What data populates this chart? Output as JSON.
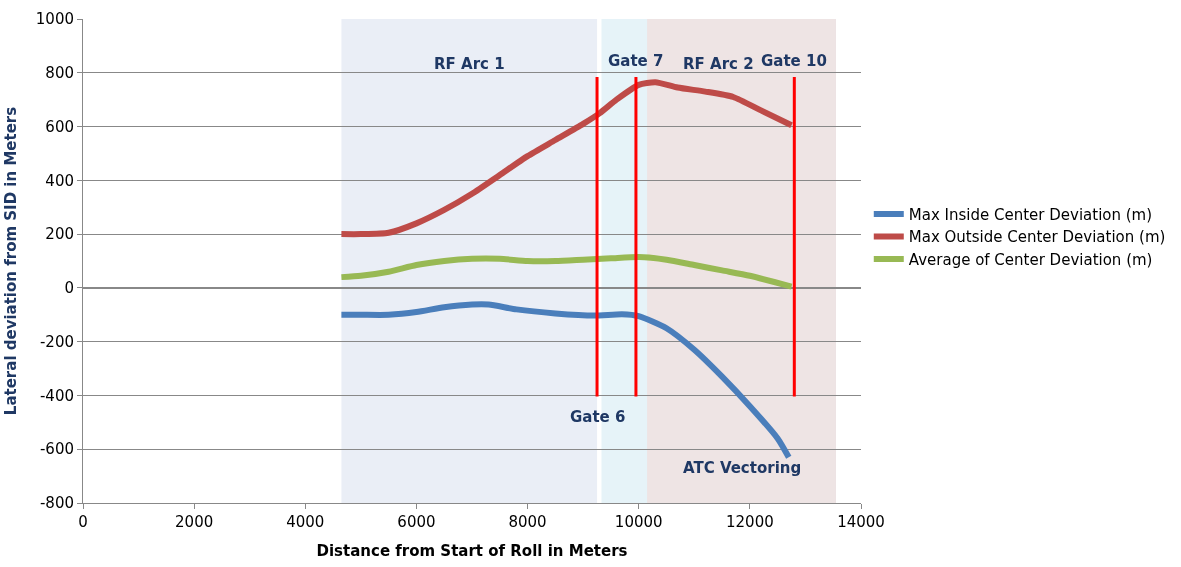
{
  "chart_data": {
    "type": "line",
    "xlabel": "Distance from Start of Roll in Meters",
    "ylabel": "Lateral deviation from SID in Meters",
    "xlim": [
      0,
      14000
    ],
    "xticks": [
      0,
      2000,
      4000,
      6000,
      8000,
      10000,
      12000,
      14000
    ],
    "ylim": [
      -800,
      1000
    ],
    "yticks": [
      -800,
      -600,
      -400,
      -200,
      0,
      200,
      400,
      600,
      800,
      1000
    ],
    "grid": "y",
    "legend": "right",
    "line_style": "solid",
    "marker": "none",
    "series": [
      {
        "name": "Max Inside Center Deviation (m)",
        "color": "#4a7ebb",
        "x": [
          4650,
          5000,
          5500,
          6000,
          6500,
          7000,
          7300,
          7800,
          8500,
          9200,
          9700,
          10000,
          10500,
          11000,
          11500,
          12000,
          12500,
          12700
        ],
        "values": [
          -100,
          -100,
          -100,
          -90,
          -72,
          -62,
          -62,
          -80,
          -95,
          -103,
          -98,
          -105,
          -150,
          -230,
          -330,
          -440,
          -560,
          -630
        ]
      },
      {
        "name": "Max Outside Center Deviation (m)",
        "color": "#be4b48",
        "x": [
          4650,
          5000,
          5500,
          6000,
          6500,
          7000,
          7500,
          8000,
          8500,
          9000,
          9300,
          9600,
          10000,
          10300,
          10700,
          11200,
          11700,
          12200,
          12750
        ],
        "values": [
          200,
          200,
          205,
          240,
          290,
          350,
          420,
          490,
          550,
          610,
          650,
          700,
          755,
          765,
          745,
          730,
          710,
          660,
          605
        ]
      },
      {
        "name": "Average of Center Deviation (m)",
        "color": "#98b954",
        "x": [
          4650,
          5000,
          5500,
          6000,
          6500,
          7000,
          7500,
          8000,
          8500,
          9000,
          9500,
          10000,
          10500,
          11000,
          11500,
          12000,
          12750
        ],
        "values": [
          40,
          45,
          60,
          85,
          100,
          108,
          108,
          100,
          100,
          105,
          110,
          115,
          105,
          85,
          65,
          45,
          5
        ]
      }
    ],
    "bands": [
      {
        "axis": "x",
        "from": 4650,
        "to": 9250,
        "label": "RF Arc 1",
        "color": "#e6ebf5"
      },
      {
        "axis": "x",
        "from": 9330,
        "to": 13550,
        "label": "RF Arc 2",
        "color": "#e2f1f7"
      },
      {
        "axis": "x",
        "from": 10150,
        "to": 13550,
        "label": "ATC Vectoring",
        "color": "#efe0e0"
      }
    ],
    "ref_lines": [
      {
        "axis": "x",
        "value": 9250,
        "label": "Gate 6",
        "color": "#ff0000"
      },
      {
        "axis": "x",
        "value": 9950,
        "label": "Gate 7",
        "color": "#ff0000"
      },
      {
        "axis": "x",
        "value": 12800,
        "label": "Gate 10",
        "color": "#ff0000"
      }
    ]
  }
}
